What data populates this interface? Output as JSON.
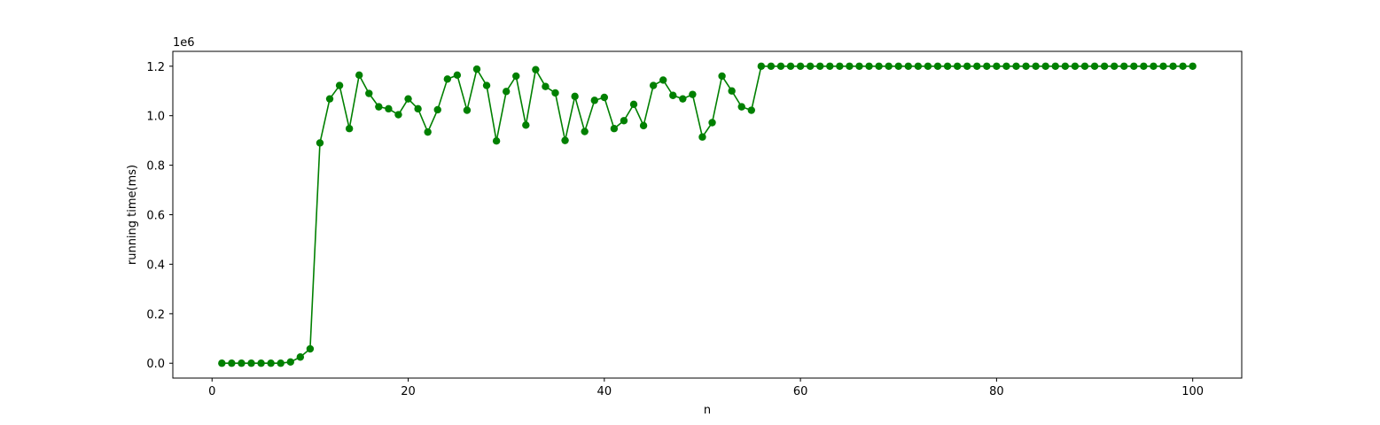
{
  "chart_data": {
    "type": "line",
    "title": "",
    "xlabel": "n",
    "ylabel": "running time(ms)",
    "y_offset_label": "1e6",
    "xlim": [
      -4,
      105
    ],
    "ylim": [
      -0.06,
      1.26
    ],
    "x_ticks": [
      0,
      20,
      40,
      60,
      80,
      100
    ],
    "x_tick_labels": [
      "0",
      "20",
      "40",
      "60",
      "80",
      "100"
    ],
    "y_ticks": [
      0.0,
      0.2,
      0.4,
      0.6,
      0.8,
      1.0,
      1.2
    ],
    "y_tick_labels": [
      "0.0",
      "0.2",
      "0.4",
      "0.6",
      "0.8",
      "1.0",
      "1.2"
    ],
    "grid": false,
    "marker": "circle",
    "color": "#008000",
    "series": [
      {
        "x": [
          1,
          2,
          3,
          4,
          5,
          6,
          7,
          8,
          9,
          10,
          11,
          12,
          13,
          14,
          15,
          16,
          17,
          18,
          19,
          20,
          21,
          22,
          23,
          24,
          25,
          26,
          27,
          28,
          29,
          30,
          31,
          32,
          33,
          34,
          35,
          36,
          37,
          38,
          39,
          40,
          41,
          42,
          43,
          44,
          45,
          46,
          47,
          48,
          49,
          50,
          51,
          52,
          53,
          54,
          55,
          56,
          57,
          58,
          59,
          60,
          61,
          62,
          63,
          64,
          65,
          66,
          67,
          68,
          69,
          70,
          71,
          72,
          73,
          74,
          75,
          76,
          77,
          78,
          79,
          80,
          81,
          82,
          83,
          84,
          85,
          86,
          87,
          88,
          89,
          90,
          91,
          92,
          93,
          94,
          95,
          96,
          97,
          98,
          99,
          100
        ],
        "values": [
          0.0,
          0.0,
          0.0,
          0.0,
          0.0,
          0.0,
          0.0,
          0.005,
          0.025,
          0.058,
          0.89,
          1.068,
          1.122,
          0.948,
          1.164,
          1.09,
          1.036,
          1.028,
          1.004,
          1.068,
          1.028,
          0.934,
          1.024,
          1.148,
          1.164,
          1.022,
          1.188,
          1.122,
          0.898,
          1.098,
          1.16,
          0.962,
          1.186,
          1.118,
          1.092,
          0.9,
          1.078,
          0.936,
          1.062,
          1.074,
          0.948,
          0.98,
          1.046,
          0.96,
          1.122,
          1.144,
          1.082,
          1.068,
          1.086,
          0.914,
          0.972,
          1.16,
          1.1,
          1.036,
          1.022,
          1.2,
          1.2,
          1.2,
          1.2,
          1.2,
          1.2,
          1.2,
          1.2,
          1.2,
          1.2,
          1.2,
          1.2,
          1.2,
          1.2,
          1.2,
          1.2,
          1.2,
          1.2,
          1.2,
          1.2,
          1.2,
          1.2,
          1.2,
          1.2,
          1.2,
          1.2,
          1.2,
          1.2,
          1.2,
          1.2,
          1.2,
          1.2,
          1.2,
          1.2,
          1.2,
          1.2,
          1.2,
          1.2,
          1.2,
          1.2,
          1.2,
          1.2,
          1.2,
          1.2,
          1.2
        ]
      }
    ]
  }
}
